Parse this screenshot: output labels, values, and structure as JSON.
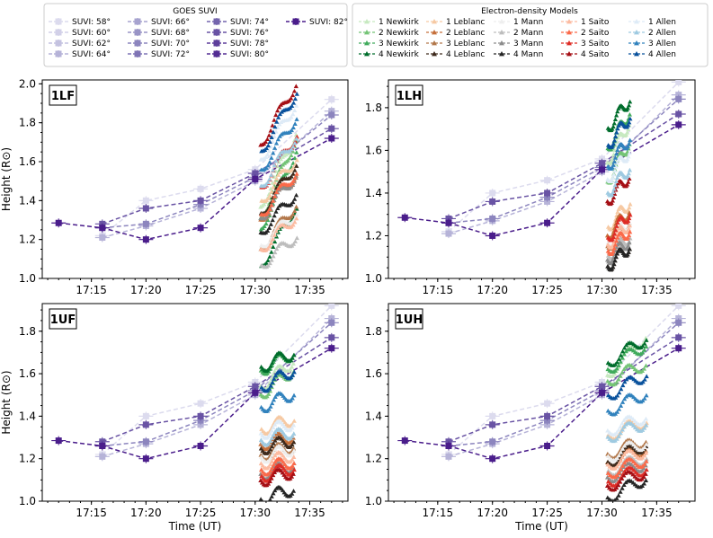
{
  "legends": {
    "suvi": {
      "title": "GOES SUVI",
      "entries": [
        "SUVI: 58°",
        "SUVI: 60°",
        "SUVI: 62°",
        "SUVI: 64°",
        "SUVI: 66°",
        "SUVI: 68°",
        "SUVI: 70°",
        "SUVI: 72°",
        "SUVI: 74°",
        "SUVI: 76°",
        "SUVI: 78°",
        "SUVI: 80°",
        "SUVI: 82°"
      ],
      "colors": [
        "#dcdbee",
        "#d2d0e8",
        "#c4c2e0",
        "#b6b3d8",
        "#a7a3cf",
        "#9994c6",
        "#8c85be",
        "#7f74b5",
        "#7465ad",
        "#6953a4",
        "#5e3f9b",
        "#532d93",
        "#4a1d8b"
      ]
    },
    "models": {
      "title": "Electron-density Models",
      "columns": [
        {
          "model": "Newkirk",
          "colors": [
            "#c7e9c0",
            "#74c476",
            "#41ab5d",
            "#006d2c"
          ],
          "marker": "triangle"
        },
        {
          "model": "Leblanc",
          "colors": [
            "#f6c9a3",
            "#c56f3a",
            "#b2774a",
            "#3e2a1c"
          ],
          "marker": "triangle"
        },
        {
          "model": "Mann",
          "colors": [
            "#eeeeee",
            "#bdbdbd",
            "#8c8c8c",
            "#252525"
          ],
          "marker": "triangle"
        },
        {
          "model": "Saito",
          "colors": [
            "#fcbba1",
            "#fb6a4a",
            "#de2d26",
            "#a50f15"
          ],
          "marker": "triangle"
        },
        {
          "model": "Allen",
          "colors": [
            "#deebf7",
            "#9ecae1",
            "#3182bd",
            "#08519c"
          ],
          "marker": "triangle"
        }
      ],
      "entries": [
        "1 Newkirk",
        "2 Newkirk",
        "3 Newkirk",
        "4 Newkirk",
        "1 Leblanc",
        "2 Leblanc",
        "3 Leblanc",
        "4 Leblanc",
        "1 Mann",
        "2 Mann",
        "3 Mann",
        "4 Mann",
        "1 Saito",
        "2 Saito",
        "3 Saito",
        "4 Saito",
        "1 Allen",
        "2 Allen",
        "3 Allen",
        "4 Allen"
      ]
    }
  },
  "axes": {
    "ylabel": "Height (R⊙)",
    "xlabel": "Time (UT)",
    "xticks": [
      "17:15",
      "17:20",
      "17:25",
      "17:30",
      "17:35"
    ],
    "yticks_top": [
      "1.0",
      "1.2",
      "1.4",
      "1.6",
      "1.8",
      "2.0"
    ],
    "yticks_top_right": [
      "1.0",
      "1.2",
      "1.4",
      "1.6",
      "1.8"
    ],
    "yticks_bottom": [
      "1.0",
      "1.2",
      "1.4",
      "1.6",
      "1.8"
    ]
  },
  "chart_data": [
    {
      "panel": "1LF",
      "type": "line",
      "xlim": [
        "17:10:30",
        "17:38:30"
      ],
      "ylim": [
        1.0,
        2.02
      ],
      "grid": false,
      "suvi_series": [
        {
          "name": "SUVI: 58°",
          "x": [
            "17:16",
            "17:20",
            "17:25",
            "17:30",
            "17:37"
          ],
          "y": [
            1.22,
            1.4,
            1.46,
            1.56,
            1.92
          ]
        },
        {
          "name": "SUVI: 64°",
          "x": [
            "17:16",
            "17:20",
            "17:25",
            "17:30",
            "17:37"
          ],
          "y": [
            1.21,
            1.27,
            1.36,
            1.5,
            1.86
          ]
        },
        {
          "name": "SUVI: 70°",
          "x": [
            "17:16",
            "17:20",
            "17:25",
            "17:30",
            "17:37"
          ],
          "y": [
            1.26,
            1.28,
            1.38,
            1.52,
            1.84
          ]
        },
        {
          "name": "SUVI: 76°",
          "x": [
            "17:16",
            "17:20",
            "17:25",
            "17:30",
            "17:37"
          ],
          "y": [
            1.28,
            1.36,
            1.4,
            1.54,
            1.77
          ]
        },
        {
          "name": "SUVI: 82°",
          "x": [
            "17:12",
            "17:16",
            "17:20",
            "17:25",
            "17:30",
            "17:37"
          ],
          "y": [
            1.285,
            1.26,
            1.2,
            1.26,
            1.51,
            1.72
          ]
        }
      ],
      "model_tracks": {
        "start": "17:30:30",
        "end": "17:33:45",
        "h0": [
          1.3,
          1.24,
          1.18,
          1.01,
          1.36,
          1.26,
          1.11,
          1.29,
          1.14,
          1.04,
          1.27,
          1.2,
          1.12,
          1.29,
          1.42,
          1.63,
          1.56,
          1.43,
          1.51,
          1.6
        ],
        "rise": [
          0.45,
          0.48,
          0.48,
          0.36,
          0.26,
          0.28,
          0.27,
          0.3,
          0.2,
          0.18,
          0.26,
          0.24,
          0.2,
          0.26,
          0.32,
          0.37,
          0.34,
          0.3,
          0.32,
          0.36
        ]
      }
    },
    {
      "panel": "1LH",
      "type": "line",
      "xlim": [
        "17:10:30",
        "17:38:30"
      ],
      "ylim": [
        1.0,
        1.93
      ],
      "grid": false,
      "suvi_series": [
        {
          "name": "SUVI: 58°",
          "x": [
            "17:16",
            "17:20",
            "17:25",
            "17:30",
            "17:37"
          ],
          "y": [
            1.22,
            1.4,
            1.46,
            1.56,
            1.92
          ]
        },
        {
          "name": "SUVI: 64°",
          "x": [
            "17:16",
            "17:20",
            "17:25",
            "17:30",
            "17:37"
          ],
          "y": [
            1.21,
            1.27,
            1.36,
            1.5,
            1.86
          ]
        },
        {
          "name": "SUVI: 70°",
          "x": [
            "17:16",
            "17:20",
            "17:25",
            "17:30",
            "17:37"
          ],
          "y": [
            1.26,
            1.28,
            1.38,
            1.52,
            1.84
          ]
        },
        {
          "name": "SUVI: 76°",
          "x": [
            "17:16",
            "17:20",
            "17:25",
            "17:30",
            "17:37"
          ],
          "y": [
            1.28,
            1.36,
            1.4,
            1.54,
            1.77
          ]
        },
        {
          "name": "SUVI: 82°",
          "x": [
            "17:12",
            "17:16",
            "17:20",
            "17:25",
            "17:30",
            "17:37"
          ],
          "y": [
            1.285,
            1.26,
            1.2,
            1.26,
            1.51,
            1.72
          ]
        }
      ],
      "model_tracks": {
        "start": "17:30:30",
        "end": "17:32:30",
        "h0": [
          1.51,
          1.42,
          1.58,
          1.68,
          1.22,
          1.18,
          1.13,
          1.04,
          1.15,
          1.09,
          1.07,
          1.04,
          1.14,
          1.11,
          1.17,
          1.34,
          1.44,
          1.38,
          1.5,
          1.6
        ],
        "rise": [
          0.22,
          0.22,
          0.2,
          0.16,
          0.14,
          0.14,
          0.14,
          0.11,
          0.12,
          0.11,
          0.11,
          0.11,
          0.12,
          0.12,
          0.14,
          0.14,
          0.16,
          0.14,
          0.16,
          0.16
        ]
      }
    },
    {
      "panel": "1UF",
      "type": "line",
      "xlim": [
        "17:10:30",
        "17:38:30"
      ],
      "ylim": [
        1.0,
        1.93
      ],
      "grid": false,
      "suvi_series": [
        {
          "name": "SUVI: 58°",
          "x": [
            "17:16",
            "17:20",
            "17:25",
            "17:30",
            "17:37"
          ],
          "y": [
            1.22,
            1.4,
            1.46,
            1.56,
            1.92
          ]
        },
        {
          "name": "SUVI: 64°",
          "x": [
            "17:16",
            "17:20",
            "17:25",
            "17:30",
            "17:37"
          ],
          "y": [
            1.21,
            1.27,
            1.36,
            1.5,
            1.86
          ]
        },
        {
          "name": "SUVI: 70°",
          "x": [
            "17:16",
            "17:20",
            "17:25",
            "17:30",
            "17:37"
          ],
          "y": [
            1.26,
            1.28,
            1.38,
            1.52,
            1.84
          ]
        },
        {
          "name": "SUVI: 76°",
          "x": [
            "17:16",
            "17:20",
            "17:25",
            "17:30",
            "17:37"
          ],
          "y": [
            1.28,
            1.36,
            1.4,
            1.54,
            1.77
          ]
        },
        {
          "name": "SUVI: 82°",
          "x": [
            "17:12",
            "17:16",
            "17:20",
            "17:25",
            "17:30",
            "17:37"
          ],
          "y": [
            1.285,
            1.26,
            1.2,
            1.26,
            1.51,
            1.72
          ]
        }
      ],
      "model_tracks": {
        "start": "17:30:30",
        "end": "17:33:30",
        "h0": [
          1.52,
          1.48,
          1.6,
          1.62,
          1.33,
          1.26,
          1.21,
          1.24,
          1.2,
          1.14,
          1.12,
          1.0,
          1.17,
          1.14,
          1.11,
          1.09,
          1.31,
          1.28,
          1.43,
          1.52
        ],
        "rise": [
          0.14,
          0.14,
          0.1,
          0.08,
          0.06,
          0.05,
          0.05,
          0.05,
          0.05,
          0.05,
          0.05,
          0.06,
          0.05,
          0.05,
          0.05,
          0.05,
          0.06,
          0.05,
          0.08,
          0.1
        ]
      }
    },
    {
      "panel": "1UH",
      "type": "line",
      "xlim": [
        "17:10:30",
        "17:38:30"
      ],
      "ylim": [
        1.0,
        1.93
      ],
      "grid": false,
      "suvi_series": [
        {
          "name": "SUVI: 58°",
          "x": [
            "17:16",
            "17:20",
            "17:25",
            "17:30",
            "17:37"
          ],
          "y": [
            1.22,
            1.4,
            1.46,
            1.56,
            1.92
          ]
        },
        {
          "name": "SUVI: 64°",
          "x": [
            "17:16",
            "17:20",
            "17:25",
            "17:30",
            "17:37"
          ],
          "y": [
            1.21,
            1.27,
            1.36,
            1.5,
            1.86
          ]
        },
        {
          "name": "SUVI: 70°",
          "x": [
            "17:16",
            "17:20",
            "17:25",
            "17:30",
            "17:37"
          ],
          "y": [
            1.26,
            1.28,
            1.38,
            1.52,
            1.84
          ]
        },
        {
          "name": "SUVI: 76°",
          "x": [
            "17:16",
            "17:20",
            "17:25",
            "17:30",
            "17:37"
          ],
          "y": [
            1.28,
            1.36,
            1.4,
            1.54,
            1.77
          ]
        },
        {
          "name": "SUVI: 82°",
          "x": [
            "17:12",
            "17:16",
            "17:20",
            "17:25",
            "17:30",
            "17:37"
          ],
          "y": [
            1.285,
            1.26,
            1.2,
            1.26,
            1.51,
            1.72
          ]
        }
      ],
      "model_tracks": {
        "start": "17:30:30",
        "end": "17:34:00",
        "h0": [
          1.56,
          1.55,
          1.6,
          1.63,
          1.3,
          1.17,
          1.21,
          1.17,
          1.2,
          1.13,
          1.1,
          1.0,
          1.16,
          1.12,
          1.08,
          1.06,
          1.32,
          1.29,
          1.41,
          1.48
        ],
        "rise": [
          0.22,
          0.1,
          0.14,
          0.14,
          0.08,
          0.08,
          0.08,
          0.1,
          0.08,
          0.08,
          0.08,
          0.11,
          0.08,
          0.08,
          0.08,
          0.08,
          0.08,
          0.08,
          0.1,
          0.12
        ]
      }
    }
  ]
}
